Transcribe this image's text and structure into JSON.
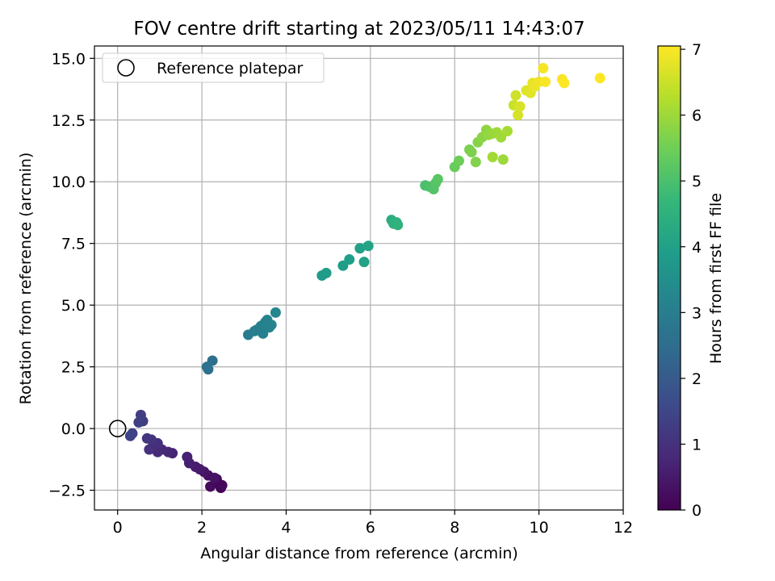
{
  "chart_data": {
    "type": "scatter",
    "title": "FOV centre drift starting at 2023/05/11 14:43:07",
    "xlabel": "Angular distance from reference (arcmin)",
    "ylabel": "Rotation from reference (arcmin)",
    "xlim": [
      -0.55,
      12.0
    ],
    "ylim": [
      -3.3,
      15.5
    ],
    "xticks": [
      0,
      2,
      4,
      6,
      8,
      10,
      12
    ],
    "xtick_labels": [
      "0",
      "2",
      "4",
      "6",
      "8",
      "10",
      "12"
    ],
    "yticks": [
      -2.5,
      0.0,
      2.5,
      5.0,
      7.5,
      10.0,
      12.5,
      15.0
    ],
    "ytick_labels": [
      "−2.5",
      "0.0",
      "2.5",
      "5.0",
      "7.5",
      "10.0",
      "12.5",
      "15.0"
    ],
    "grid": true,
    "legend": {
      "position": "top-left",
      "entries": [
        {
          "label": "Reference platepar",
          "marker": "open-circle"
        }
      ]
    },
    "reference_point": {
      "x": 0.0,
      "y": 0.0
    },
    "colorbar": {
      "label": "Hours from first FF file",
      "range": [
        0,
        7.05
      ],
      "ticks": [
        0,
        1,
        2,
        3,
        4,
        5,
        6,
        7
      ],
      "tick_labels": [
        "0",
        "1",
        "2",
        "3",
        "4",
        "5",
        "6",
        "7"
      ],
      "colormap": "viridis"
    },
    "colormap_stops": [
      "#440154",
      "#482878",
      "#3e4989",
      "#31688e",
      "#26828e",
      "#1f9e89",
      "#35b779",
      "#6ece58",
      "#b5de2b",
      "#fde725"
    ],
    "series": [
      {
        "x": [
          2.45,
          2.35,
          2.4,
          2.48,
          2.2,
          2.15,
          2.3,
          2.05,
          1.95,
          1.85,
          1.7,
          1.65,
          1.3,
          1.2,
          1.05,
          0.95,
          0.85,
          0.95,
          0.75,
          0.8,
          0.7,
          0.6,
          0.55,
          0.5,
          0.35,
          0.3,
          2.15,
          2.25,
          2.12,
          3.1,
          3.25,
          3.4,
          3.45,
          3.55,
          3.65,
          3.75,
          3.5,
          3.6,
          3.3,
          4.85,
          4.95,
          5.35,
          5.5,
          5.75,
          5.85,
          5.95,
          6.5,
          6.55,
          6.62,
          6.65,
          7.3,
          7.4,
          7.5,
          7.55,
          7.6,
          8.0,
          8.1,
          8.35,
          8.4,
          8.5,
          8.55,
          8.65,
          8.75,
          8.8,
          8.9,
          9.0,
          9.1,
          9.25,
          9.15,
          8.9,
          9.4,
          9.45,
          9.5,
          9.55,
          9.7,
          9.8,
          9.85,
          9.9,
          10.0,
          10.1,
          10.15,
          10.55,
          10.6,
          11.45
        ],
        "y": [
          -2.4,
          -2.05,
          -2.25,
          -2.3,
          -2.35,
          -1.9,
          -2.0,
          -1.75,
          -1.65,
          -1.55,
          -1.4,
          -1.15,
          -1.0,
          -0.95,
          -0.85,
          -0.95,
          -0.65,
          -0.6,
          -0.85,
          -0.45,
          -0.4,
          0.3,
          0.55,
          0.25,
          -0.2,
          -0.3,
          2.4,
          2.75,
          2.5,
          3.8,
          3.95,
          4.15,
          3.85,
          4.4,
          4.2,
          4.7,
          4.3,
          4.1,
          4.0,
          6.2,
          6.3,
          6.6,
          6.85,
          7.3,
          6.75,
          7.4,
          8.45,
          8.3,
          8.35,
          8.25,
          9.85,
          9.8,
          9.7,
          9.95,
          10.1,
          10.6,
          10.85,
          11.3,
          11.2,
          10.8,
          11.6,
          11.8,
          12.1,
          11.9,
          11.95,
          12.0,
          11.8,
          12.05,
          10.9,
          11.0,
          13.1,
          13.5,
          12.7,
          13.05,
          13.7,
          13.6,
          14.0,
          13.85,
          14.05,
          14.6,
          14.05,
          14.15,
          14.0,
          14.2
        ],
        "hours": [
          0.0,
          0.05,
          0.1,
          0.15,
          0.2,
          0.3,
          0.35,
          0.4,
          0.5,
          0.55,
          0.6,
          0.65,
          0.7,
          0.75,
          0.8,
          0.85,
          0.9,
          0.95,
          1.0,
          1.05,
          1.1,
          1.25,
          1.3,
          1.35,
          1.4,
          1.45,
          2.55,
          2.6,
          2.65,
          2.95,
          3.0,
          3.05,
          3.1,
          3.15,
          3.2,
          3.25,
          3.1,
          3.15,
          3.0,
          3.8,
          3.85,
          3.9,
          3.95,
          4.0,
          4.05,
          4.1,
          4.4,
          4.45,
          4.5,
          4.55,
          5.0,
          5.05,
          5.1,
          5.15,
          5.2,
          5.4,
          5.45,
          5.6,
          5.65,
          5.7,
          5.75,
          5.8,
          5.85,
          5.9,
          5.95,
          6.0,
          6.05,
          6.1,
          6.0,
          6.05,
          6.5,
          6.55,
          6.6,
          6.65,
          6.7,
          6.75,
          6.8,
          6.85,
          6.9,
          6.95,
          7.0,
          7.0,
          7.05,
          7.05
        ]
      }
    ]
  }
}
